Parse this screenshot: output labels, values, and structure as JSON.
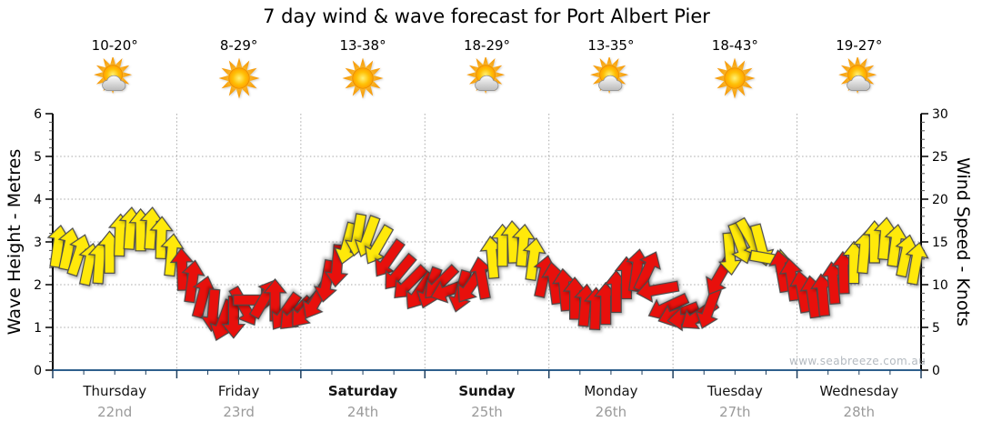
{
  "title": "7 day wind & wave forecast for Port Albert Pier",
  "watermark": "www.seabreeze.com.au",
  "days": [
    {
      "name": "Thursday",
      "date": "22nd",
      "temp": "10-20°",
      "icon": "sun-cloud",
      "bold": false
    },
    {
      "name": "Friday",
      "date": "23rd",
      "temp": "8-29°",
      "icon": "sun",
      "bold": false
    },
    {
      "name": "Saturday",
      "date": "24th",
      "temp": "13-38°",
      "icon": "sun",
      "bold": true
    },
    {
      "name": "Sunday",
      "date": "25th",
      "temp": "18-29°",
      "icon": "sun-cloud",
      "bold": true
    },
    {
      "name": "Monday",
      "date": "26th",
      "temp": "13-35°",
      "icon": "sun-cloud",
      "bold": false
    },
    {
      "name": "Tuesday",
      "date": "27th",
      "temp": "18-43°",
      "icon": "sun",
      "bold": false
    },
    {
      "name": "Wednesday",
      "date": "28th",
      "temp": "19-27°",
      "icon": "sun-cloud",
      "bold": false
    }
  ],
  "left_axis": {
    "label": "Wave Height - Metres",
    "min": 0,
    "max": 6,
    "ticks": [
      0,
      1,
      2,
      3,
      4,
      5,
      6
    ]
  },
  "right_axis": {
    "label": "Wind Speed - Knots",
    "min": 0,
    "max": 30,
    "ticks": [
      0,
      5,
      10,
      15,
      20,
      25,
      30
    ]
  },
  "colors": {
    "arrow_yellow": "#FFE90A",
    "arrow_red": "#E8100C",
    "axis_blue": "#2E5F8C",
    "grid_gray": "#A8A8A8",
    "date_gray": "#9A9A9A",
    "watermark_gray": "#B4BAC0"
  },
  "chart_data": {
    "type": "wind_arrows_timeseries",
    "x_unit": "day_fraction_0_to_7",
    "y_unit": "knots",
    "dir_unit": "degrees_clockwise_from_up",
    "y_axis_equivalence": "1 metre (left axis) = 5 knots (right axis)",
    "grid": true,
    "color_codes": {
      "y": "yellow",
      "r": "red"
    },
    "point_format": [
      "x_days",
      "knots",
      "direction_deg",
      "color"
    ],
    "points": [
      [
        0.042,
        14.5,
        8,
        "y"
      ],
      [
        0.125,
        14.2,
        12,
        "y"
      ],
      [
        0.208,
        13.5,
        18,
        "y"
      ],
      [
        0.292,
        12.4,
        12,
        "y"
      ],
      [
        0.375,
        12.6,
        4,
        "y"
      ],
      [
        0.458,
        13.8,
        0,
        "y"
      ],
      [
        0.542,
        15.8,
        2,
        "y"
      ],
      [
        0.625,
        16.6,
        4,
        "y"
      ],
      [
        0.708,
        16.4,
        0,
        "y"
      ],
      [
        0.792,
        16.6,
        4,
        "y"
      ],
      [
        0.875,
        15.5,
        2,
        "y"
      ],
      [
        0.958,
        13.5,
        6,
        "y"
      ],
      [
        1.042,
        11.8,
        358,
        "r"
      ],
      [
        1.125,
        10.4,
        8,
        "r"
      ],
      [
        1.208,
        8.6,
        15,
        "r"
      ],
      [
        1.292,
        7.0,
        185,
        "r"
      ],
      [
        1.375,
        5.8,
        200,
        "r"
      ],
      [
        1.458,
        6.2,
        180,
        "r"
      ],
      [
        1.542,
        7.4,
        150,
        "r"
      ],
      [
        1.625,
        8.2,
        90,
        "r"
      ],
      [
        1.708,
        8.4,
        30,
        "r"
      ],
      [
        1.792,
        8.2,
        0,
        "r"
      ],
      [
        1.875,
        6.8,
        215,
        "r"
      ],
      [
        1.958,
        6.6,
        225,
        "r"
      ],
      [
        2.042,
        7.0,
        220,
        "r"
      ],
      [
        2.125,
        8.2,
        210,
        "r"
      ],
      [
        2.208,
        10.4,
        190,
        "r"
      ],
      [
        2.292,
        12.2,
        185,
        "r"
      ],
      [
        2.375,
        14.8,
        195,
        "y"
      ],
      [
        2.458,
        15.8,
        190,
        "y"
      ],
      [
        2.542,
        15.6,
        200,
        "y"
      ],
      [
        2.625,
        14.6,
        210,
        "y"
      ],
      [
        2.708,
        13.0,
        215,
        "r"
      ],
      [
        2.792,
        11.4,
        220,
        "r"
      ],
      [
        2.875,
        10.2,
        225,
        "r"
      ],
      [
        2.958,
        9.2,
        215,
        "r"
      ],
      [
        3.042,
        9.6,
        200,
        "r"
      ],
      [
        3.125,
        10.2,
        225,
        "r"
      ],
      [
        3.208,
        9.4,
        250,
        "r"
      ],
      [
        3.292,
        9.2,
        195,
        "r"
      ],
      [
        3.375,
        10.0,
        215,
        "r"
      ],
      [
        3.458,
        10.8,
        350,
        "r"
      ],
      [
        3.542,
        13.2,
        355,
        "y"
      ],
      [
        3.625,
        14.6,
        0,
        "y"
      ],
      [
        3.708,
        15.0,
        358,
        "y"
      ],
      [
        3.792,
        14.6,
        5,
        "y"
      ],
      [
        3.875,
        13.0,
        8,
        "y"
      ],
      [
        3.958,
        11.0,
        12,
        "r"
      ],
      [
        4.042,
        10.2,
        352,
        "r"
      ],
      [
        4.125,
        9.4,
        355,
        "r"
      ],
      [
        4.208,
        8.4,
        0,
        "r"
      ],
      [
        4.292,
        7.6,
        5,
        "r"
      ],
      [
        4.375,
        7.2,
        2,
        "r"
      ],
      [
        4.458,
        7.8,
        0,
        "r"
      ],
      [
        4.542,
        9.2,
        0,
        "r"
      ],
      [
        4.625,
        10.8,
        0,
        "r"
      ],
      [
        4.708,
        11.7,
        8,
        "r"
      ],
      [
        4.792,
        11.6,
        25,
        "r"
      ],
      [
        4.875,
        9.4,
        260,
        "r"
      ],
      [
        4.958,
        7.4,
        245,
        "r"
      ],
      [
        5.042,
        6.6,
        250,
        "r"
      ],
      [
        5.125,
        6.0,
        265,
        "r"
      ],
      [
        5.208,
        6.4,
        235,
        "r"
      ],
      [
        5.292,
        7.2,
        200,
        "r"
      ],
      [
        5.375,
        11.0,
        210,
        "r"
      ],
      [
        5.458,
        13.6,
        175,
        "y"
      ],
      [
        5.542,
        14.8,
        160,
        "y"
      ],
      [
        5.625,
        15.4,
        150,
        "y"
      ],
      [
        5.708,
        14.6,
        165,
        "y"
      ],
      [
        5.792,
        13.0,
        100,
        "y"
      ],
      [
        5.875,
        11.6,
        350,
        "r"
      ],
      [
        5.958,
        10.6,
        352,
        "r"
      ],
      [
        6.042,
        9.2,
        350,
        "r"
      ],
      [
        6.125,
        8.6,
        352,
        "r"
      ],
      [
        6.208,
        8.8,
        355,
        "r"
      ],
      [
        6.292,
        10.2,
        355,
        "r"
      ],
      [
        6.375,
        11.4,
        358,
        "r"
      ],
      [
        6.458,
        12.6,
        0,
        "y"
      ],
      [
        6.542,
        13.8,
        5,
        "y"
      ],
      [
        6.625,
        15.0,
        0,
        "y"
      ],
      [
        6.708,
        15.4,
        5,
        "y"
      ],
      [
        6.792,
        14.6,
        8,
        "y"
      ],
      [
        6.875,
        13.4,
        12,
        "y"
      ],
      [
        6.958,
        12.5,
        10,
        "y"
      ]
    ]
  }
}
